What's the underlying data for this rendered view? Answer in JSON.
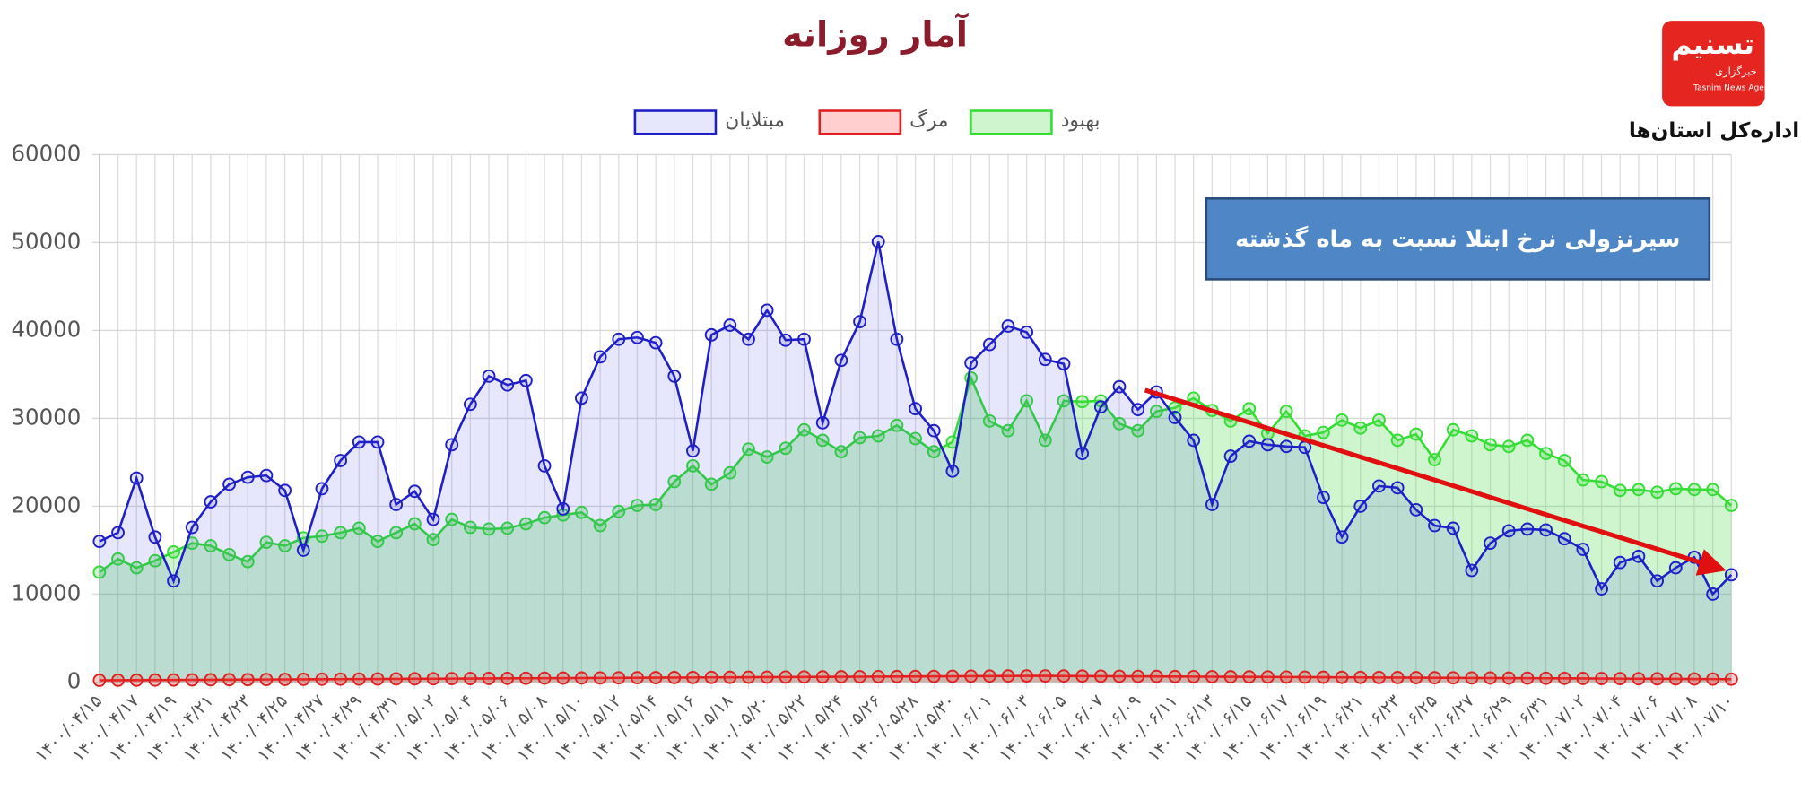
{
  "chart_data": {
    "type": "line",
    "title": "آمار روزانه",
    "annotation": "سیرنزولی نرخ ابتلا نسبت به ماه گذشته",
    "categories": [
      "۱۴۰۰/۰۴/۱۵",
      null,
      "۱۴۰۰/۰۴/۱۷",
      null,
      "۱۴۰۰/۰۴/۱۹",
      null,
      "۱۴۰۰/۰۴/۲۱",
      null,
      "۱۴۰۰/۰۴/۲۳",
      null,
      "۱۴۰۰/۰۴/۲۵",
      null,
      "۱۴۰۰/۰۴/۲۷",
      null,
      "۱۴۰۰/۰۴/۲۹",
      null,
      "۱۴۰۰/۰۴/۳۱",
      null,
      "۱۴۰۰/۰۵/۰۲",
      null,
      "۱۴۰۰/۰۵/۰۴",
      null,
      "۱۴۰۰/۰۵/۰۶",
      null,
      "۱۴۰۰/۰۵/۰۸",
      null,
      "۱۴۰۰/۰۵/۱۰",
      null,
      "۱۴۰۰/۰۵/۱۲",
      null,
      "۱۴۰۰/۰۵/۱۴",
      null,
      "۱۴۰۰/۰۵/۱۶",
      null,
      "۱۴۰۰/۰۵/۱۸",
      null,
      "۱۴۰۰/۰۵/۲۰",
      null,
      "۱۴۰۰/۰۵/۲۲",
      null,
      "۱۴۰۰/۰۵/۲۴",
      null,
      "۱۴۰۰/۰۵/۲۶",
      null,
      "۱۴۰۰/۰۵/۲۸",
      null,
      "۱۴۰۰/۰۵/۳۰",
      null,
      "۱۴۰۰/۰۶/۰۱",
      null,
      "۱۴۰۰/۰۶/۰۳",
      null,
      "۱۴۰۰/۰۶/۰۵",
      null,
      "۱۴۰۰/۰۶/۰۷",
      null,
      "۱۴۰۰/۰۶/۰۹",
      null,
      "۱۴۰۰/۰۶/۱۱",
      null,
      "۱۴۰۰/۰۶/۱۳",
      null,
      "۱۴۰۰/۰۶/۱۵",
      null,
      "۱۴۰۰/۰۶/۱۷",
      null,
      "۱۴۰۰/۰۶/۱۹",
      null,
      "۱۴۰۰/۰۶/۲۱",
      null,
      "۱۴۰۰/۰۶/۲۳",
      null,
      "۱۴۰۰/۰۶/۲۵",
      null,
      "۱۴۰۰/۰۶/۲۷",
      null,
      "۱۴۰۰/۰۶/۲۹",
      null,
      "۱۴۰۰/۰۶/۳۱",
      null,
      "۱۴۰۰/۰۷/۰۲",
      null,
      "۱۴۰۰/۰۷/۰۴",
      null,
      "۱۴۰۰/۰۷/۰۶",
      null,
      "۱۴۰۰/۰۷/۰۸",
      null,
      "۱۴۰۰/۰۷/۱۰"
    ],
    "series": [
      {
        "name": "مبتلایان",
        "color": "#1f1fc8",
        "fill": "rgba(60,60,230,0.13)",
        "values": [
          16000,
          17000,
          23200,
          16500,
          11500,
          17600,
          20500,
          22500,
          23300,
          23500,
          21800,
          15000,
          22000,
          25200,
          27300,
          27300,
          20200,
          21700,
          18500,
          27000,
          31600,
          34800,
          33800,
          34300,
          24600,
          19700,
          32300,
          37000,
          39000,
          39200,
          38600,
          34800,
          26300,
          39500,
          40600,
          39000,
          42300,
          38900,
          39000,
          29500,
          36600,
          41000,
          50100,
          39000,
          31100,
          28600,
          24000,
          36300,
          38400,
          40500,
          39800,
          36700,
          36200,
          26000,
          31300,
          33600,
          31000,
          33000,
          30100,
          27500,
          20200,
          25700,
          27400,
          27000,
          26800,
          26700,
          21000,
          16500,
          20000,
          22300,
          22100,
          19600,
          17800,
          17500,
          12700,
          15800,
          17200,
          17400,
          17300,
          16300,
          15100,
          10600,
          13600,
          14300,
          11500,
          13000,
          14200,
          10000,
          12200
        ]
      },
      {
        "name": "مرگ",
        "color": "#e02020",
        "fill": "rgba(255,60,60,0.25)",
        "values": [
          200,
          210,
          220,
          230,
          240,
          250,
          260,
          270,
          280,
          290,
          300,
          310,
          320,
          330,
          340,
          350,
          360,
          370,
          380,
          390,
          400,
          410,
          420,
          430,
          440,
          450,
          460,
          470,
          480,
          490,
          500,
          510,
          520,
          530,
          540,
          550,
          560,
          570,
          580,
          590,
          600,
          610,
          620,
          630,
          640,
          650,
          660,
          670,
          680,
          690,
          700,
          700,
          690,
          680,
          670,
          660,
          650,
          640,
          630,
          620,
          610,
          600,
          590,
          580,
          570,
          560,
          550,
          540,
          530,
          520,
          510,
          500,
          490,
          480,
          470,
          460,
          450,
          440,
          430,
          420,
          410,
          400,
          390,
          380,
          370,
          360,
          350,
          340,
          330
        ]
      },
      {
        "name": "بهبود",
        "color": "#33dd33",
        "fill": "rgba(80,220,80,0.28)",
        "values": [
          12500,
          14000,
          13000,
          13800,
          14800,
          15800,
          15500,
          14500,
          13700,
          15900,
          15500,
          16400,
          16600,
          17000,
          17500,
          16000,
          17000,
          18000,
          16200,
          18500,
          17600,
          17400,
          17500,
          18000,
          18700,
          19000,
          19300,
          17800,
          19400,
          20100,
          20200,
          22800,
          24600,
          22500,
          23800,
          26500,
          25600,
          26600,
          28700,
          27500,
          26200,
          27800,
          28000,
          29200,
          27700,
          26200,
          27300,
          34600,
          29700,
          28600,
          32000,
          27500,
          32000,
          31900,
          32000,
          29400,
          28600,
          30800,
          31200,
          32300,
          30900,
          29700,
          31100,
          28300,
          30800,
          28000,
          28400,
          29800,
          28900,
          29800,
          27500,
          28200,
          25300,
          28700,
          28000,
          27000,
          26800,
          27500,
          26000,
          25200,
          23000,
          22800,
          21800,
          21900,
          21600,
          22000,
          21900,
          21900,
          20100
        ]
      }
    ],
    "ylim": [
      0,
      60000
    ],
    "yticks": [
      0,
      10000,
      20000,
      30000,
      40000,
      50000,
      60000
    ],
    "grid": true
  },
  "logo": {
    "brand": "تسنیم",
    "agency_fa": "خبرگزاری",
    "agency_en": "Tasnim News Agency",
    "caption": "اداره‌کل استان‌ها"
  }
}
